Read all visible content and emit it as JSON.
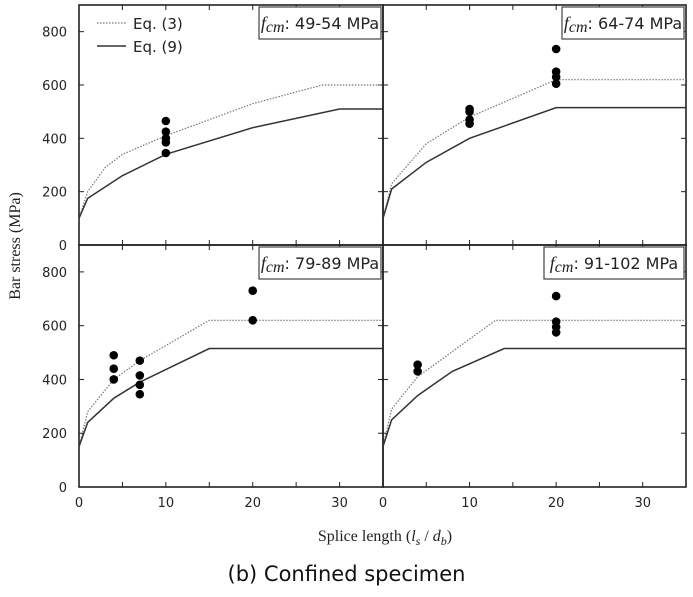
{
  "caption": "(b)  Confined specimen",
  "chart_data": {
    "type": "line",
    "ylabel": "Bar stress (MPa)",
    "xlabel_prefix": "Splice length (",
    "xlabel_l": "l",
    "xlabel_s": "s",
    "xlabel_sep": " / ",
    "xlabel_d": "d",
    "xlabel_b": "b",
    "xlabel_suffix": ")",
    "xlim": [
      0,
      35
    ],
    "ylim": [
      0,
      900
    ],
    "xticks": [
      0,
      10,
      20,
      30
    ],
    "yticks": [
      0,
      200,
      400,
      600,
      800
    ],
    "legend": {
      "placement": "top-left of first panel",
      "entries": [
        {
          "name": "Eq. (3)",
          "style": "dotted"
        },
        {
          "name": "Eq. (9)",
          "style": "solid"
        }
      ]
    },
    "panels": [
      {
        "label_f": "f",
        "label_sub": "cm",
        "label_range": ": 49-54 MPa",
        "eq3": [
          [
            0,
            100
          ],
          [
            0.5,
            150
          ],
          [
            1,
            200
          ],
          [
            3,
            290
          ],
          [
            5,
            340
          ],
          [
            10,
            410
          ],
          [
            20,
            530
          ],
          [
            28,
            600
          ],
          [
            35,
            600
          ]
        ],
        "eq9": [
          [
            0,
            100
          ],
          [
            1,
            175
          ],
          [
            5,
            260
          ],
          [
            10,
            340
          ],
          [
            20,
            440
          ],
          [
            30,
            510
          ],
          [
            35,
            510
          ]
        ],
        "points": [
          [
            10,
            465
          ],
          [
            10,
            425
          ],
          [
            10,
            400
          ],
          [
            10,
            385
          ],
          [
            10,
            345
          ]
        ]
      },
      {
        "label_f": "f",
        "label_sub": "cm",
        "label_range": ": 64-74 MPa",
        "eq3": [
          [
            0,
            100
          ],
          [
            1,
            230
          ],
          [
            5,
            380
          ],
          [
            10,
            480
          ],
          [
            20,
            620
          ],
          [
            35,
            620
          ]
        ],
        "eq9": [
          [
            0,
            100
          ],
          [
            1,
            210
          ],
          [
            5,
            310
          ],
          [
            10,
            400
          ],
          [
            20,
            515
          ],
          [
            35,
            515
          ]
        ],
        "points": [
          [
            10,
            510
          ],
          [
            10,
            500
          ],
          [
            10,
            470
          ],
          [
            10,
            455
          ],
          [
            20,
            735
          ],
          [
            20,
            650
          ],
          [
            20,
            630
          ],
          [
            20,
            605
          ]
        ]
      },
      {
        "label_f": "f",
        "label_sub": "cm",
        "label_range": ": 79-89 MPa",
        "eq3": [
          [
            0,
            150
          ],
          [
            1,
            280
          ],
          [
            4,
            400
          ],
          [
            7,
            470
          ],
          [
            15,
            620
          ],
          [
            35,
            620
          ]
        ],
        "eq9": [
          [
            0,
            150
          ],
          [
            1,
            240
          ],
          [
            4,
            330
          ],
          [
            7,
            390
          ],
          [
            15,
            515
          ],
          [
            35,
            515
          ]
        ],
        "points": [
          [
            4,
            490
          ],
          [
            4,
            440
          ],
          [
            4,
            400
          ],
          [
            7,
            470
          ],
          [
            7,
            415
          ],
          [
            7,
            380
          ],
          [
            7,
            345
          ],
          [
            20,
            730
          ],
          [
            20,
            620
          ]
        ]
      },
      {
        "label_f": "f",
        "label_sub": "cm",
        "label_range": ": 91-102 MPa",
        "eq3": [
          [
            0,
            150
          ],
          [
            1,
            290
          ],
          [
            4,
            410
          ],
          [
            13,
            620
          ],
          [
            35,
            620
          ]
        ],
        "eq9": [
          [
            0,
            150
          ],
          [
            1,
            250
          ],
          [
            4,
            340
          ],
          [
            8,
            430
          ],
          [
            14,
            515
          ],
          [
            35,
            515
          ]
        ],
        "points": [
          [
            4,
            455
          ],
          [
            4,
            430
          ],
          [
            20,
            710
          ],
          [
            20,
            615
          ],
          [
            20,
            595
          ],
          [
            20,
            575
          ]
        ]
      }
    ]
  }
}
